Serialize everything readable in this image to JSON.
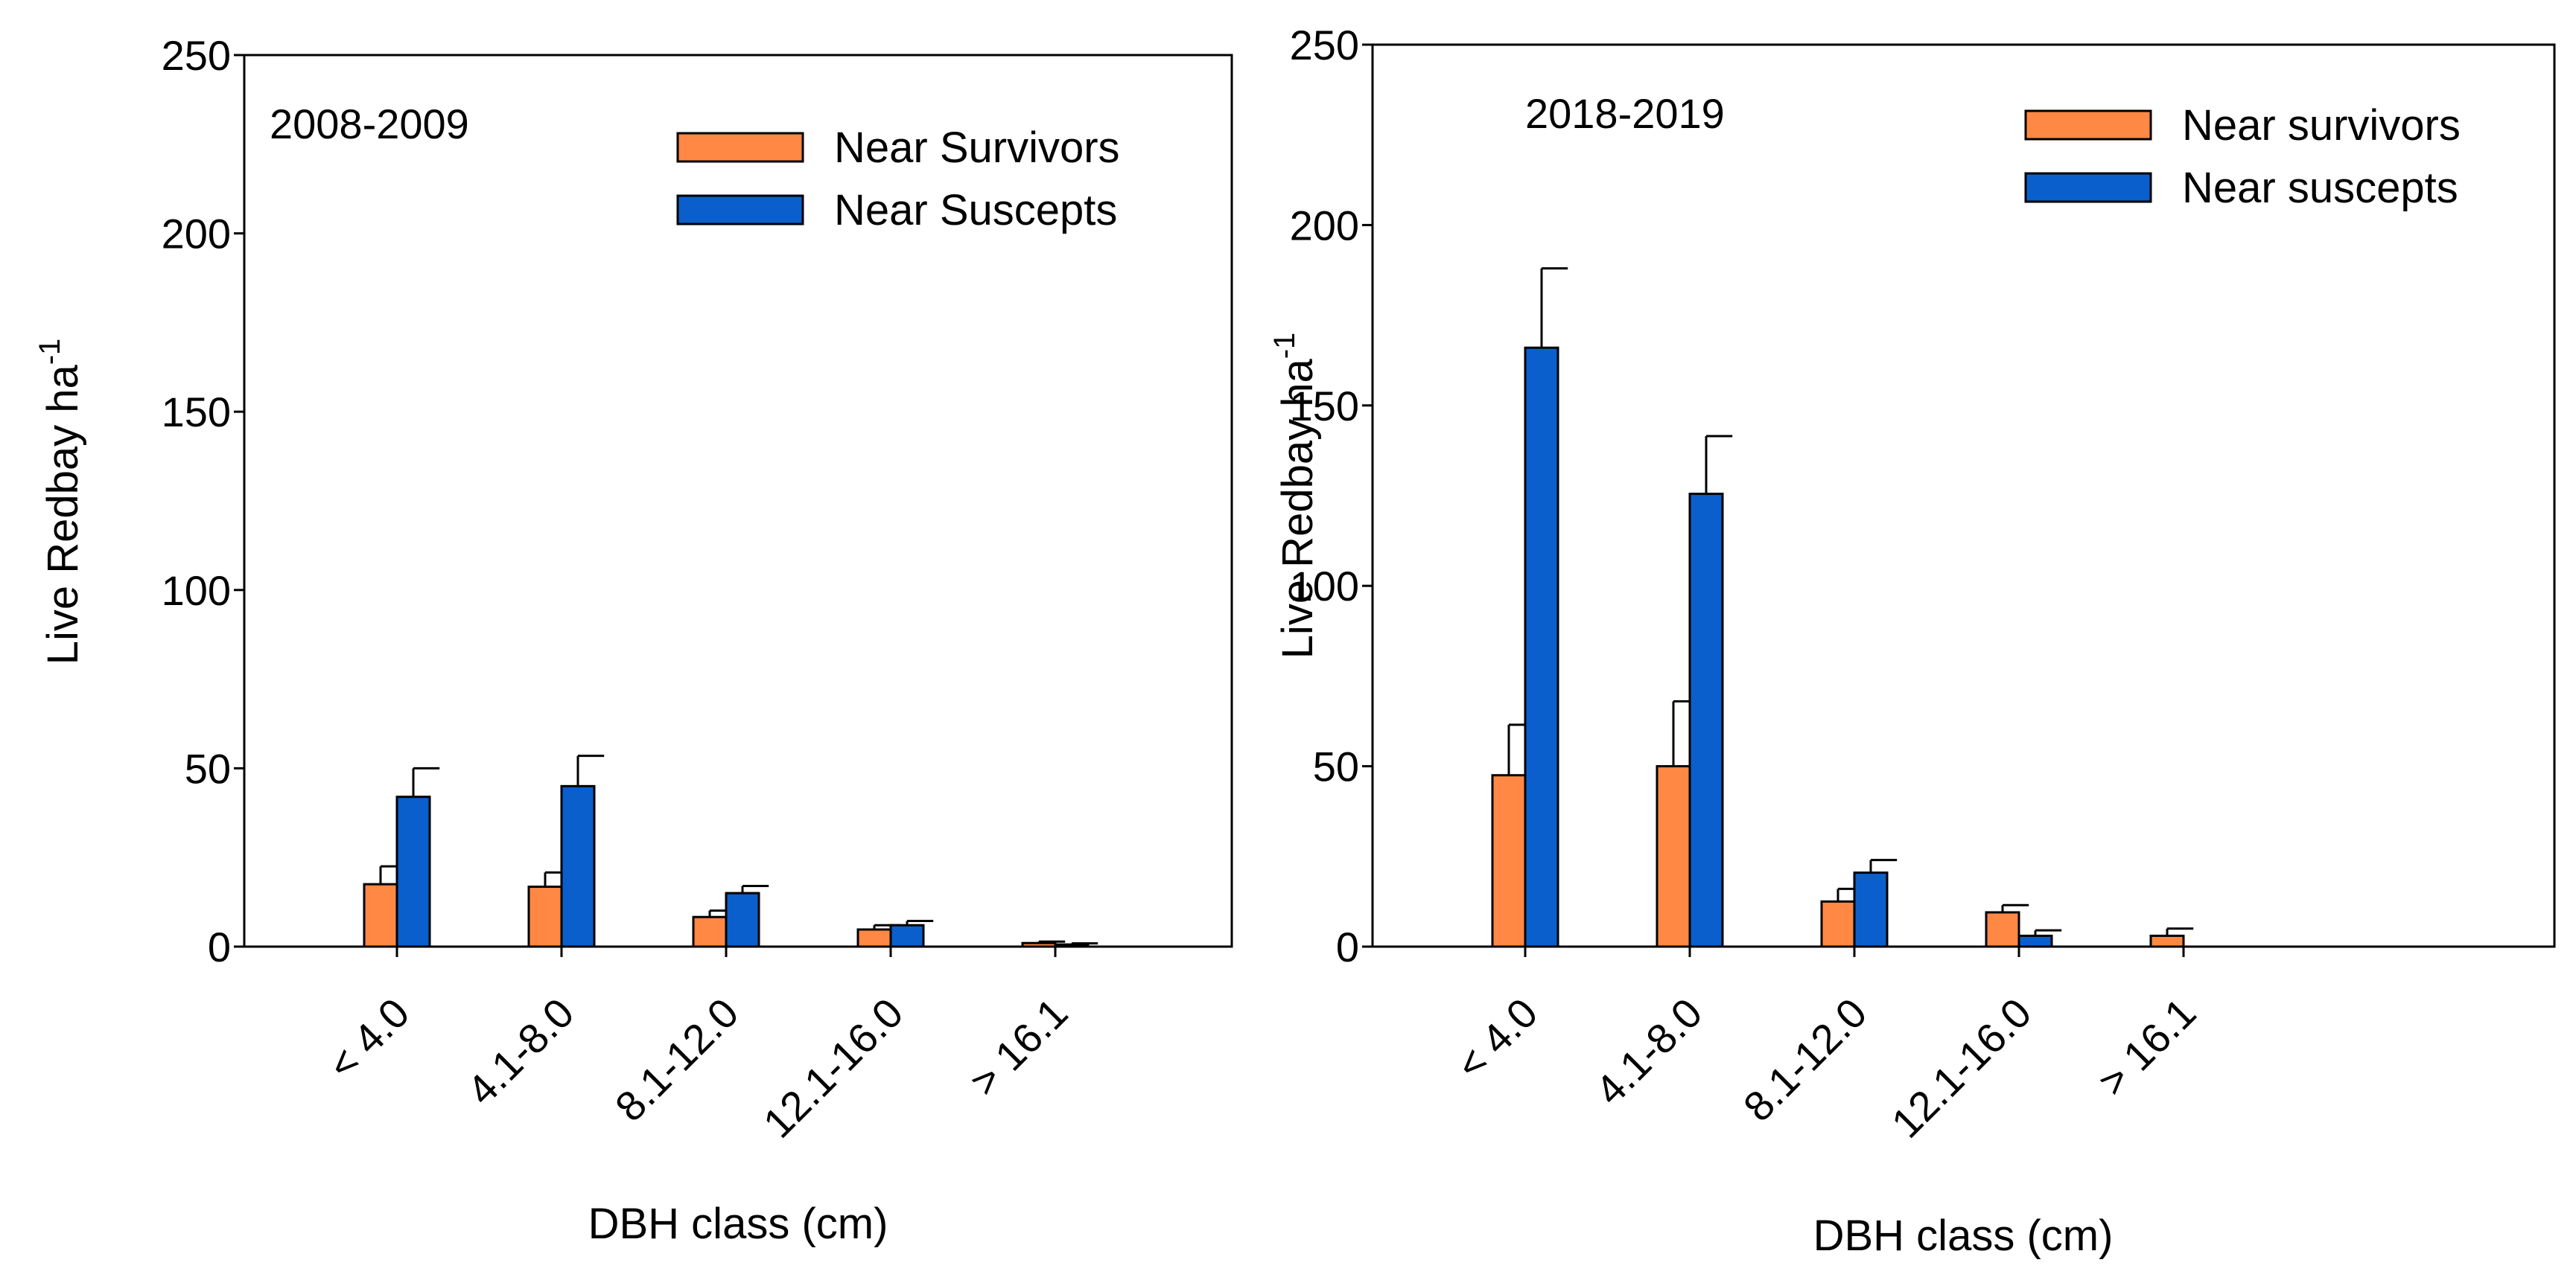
{
  "colors": {
    "series_orange": "#FF8844",
    "series_blue": "#0A5FCC",
    "axis": "#000000",
    "background": "#FFFFFF"
  },
  "chart_data": [
    {
      "type": "bar",
      "panel_label": "2008-2009",
      "ylabel": "Live Redbay ha",
      "ylabel_superscript": "-1",
      "xlabel": "DBH class (cm)",
      "ylim": [
        0,
        250
      ],
      "yticks": [
        0,
        50,
        100,
        150,
        200,
        250
      ],
      "categories": [
        "< 4.0",
        "4.1-8.0",
        "8.1-12.0",
        "12.1-16.0",
        "> 16.1"
      ],
      "legend_position": "top-right",
      "grid": false,
      "series": [
        {
          "name": "Near Survivors",
          "color": "#FF8844",
          "values": [
            17.5,
            16.8,
            8.3,
            4.8,
            1.0
          ],
          "errors": [
            5.0,
            4.0,
            1.8,
            1.2,
            0.4
          ]
        },
        {
          "name": "Near Suscepts",
          "color": "#0A5FCC",
          "values": [
            42.0,
            45.0,
            15.0,
            6.0,
            0.6
          ],
          "errors": [
            8.0,
            8.5,
            2.0,
            1.2,
            0.3
          ]
        }
      ]
    },
    {
      "type": "bar",
      "panel_label": "2018-2019",
      "ylabel": "Live Redbay ha",
      "ylabel_superscript": "-1",
      "xlabel": "DBH class (cm)",
      "ylim": [
        0,
        250
      ],
      "yticks": [
        0,
        50,
        100,
        150,
        200,
        250
      ],
      "categories": [
        "< 4.0",
        "4.1-8.0",
        "8.1-12.0",
        "12.1-16.0",
        "> 16.1"
      ],
      "legend_position": "top-right",
      "grid": false,
      "series": [
        {
          "name": "Near survivors",
          "color": "#FF8844",
          "values": [
            47.5,
            50.0,
            12.5,
            9.5,
            3.0
          ],
          "errors": [
            14.0,
            18.0,
            3.5,
            2.0,
            2.0
          ]
        },
        {
          "name": "Near suscepts",
          "color": "#0A5FCC",
          "values": [
            166.0,
            125.5,
            20.5,
            3.0,
            null
          ],
          "errors": [
            22.0,
            16.0,
            3.5,
            1.5,
            null
          ]
        }
      ]
    }
  ]
}
